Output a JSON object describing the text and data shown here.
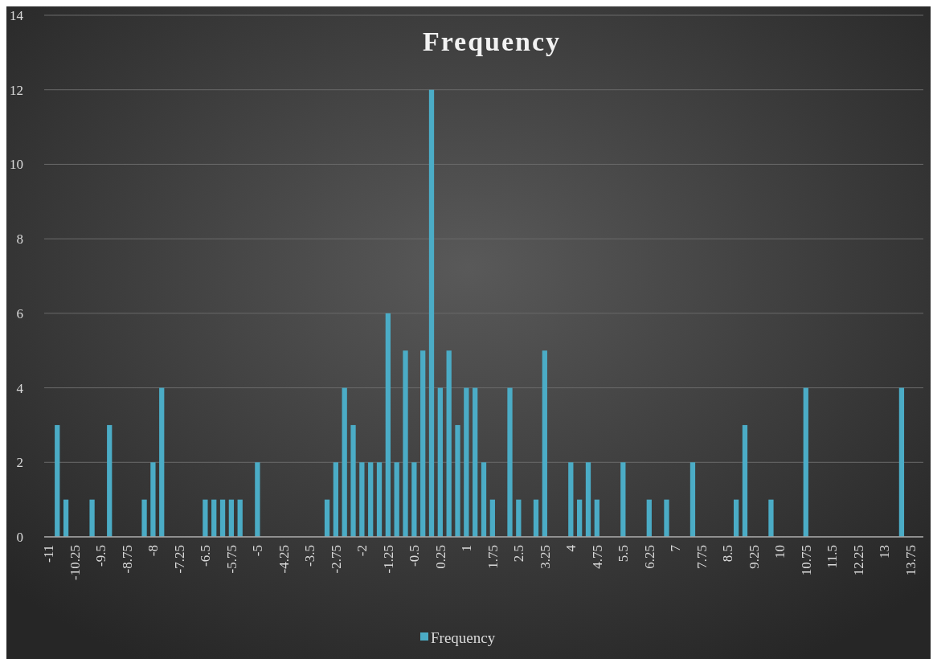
{
  "chart_data": {
    "type": "bar",
    "title": "Frequency",
    "categories": [
      "-11",
      null,
      null,
      "-10.25",
      null,
      null,
      "-9.5",
      null,
      null,
      "-8.75",
      null,
      null,
      "-8",
      null,
      null,
      "-7.25",
      null,
      null,
      "-6.5",
      null,
      null,
      "-5.75",
      null,
      null,
      "-5",
      null,
      null,
      "-4.25",
      null,
      null,
      "-3.5",
      null,
      null,
      "-2.75",
      null,
      null,
      "-2",
      null,
      null,
      "-1.25",
      null,
      null,
      "-0.5",
      null,
      null,
      "0.25",
      null,
      null,
      "1",
      null,
      null,
      "1.75",
      null,
      null,
      "2.5",
      null,
      null,
      "3.25",
      null,
      null,
      "4",
      null,
      null,
      "4.75",
      null,
      null,
      "5.5",
      null,
      null,
      "6.25",
      null,
      null,
      "7",
      null,
      null,
      "7.75",
      null,
      null,
      "8.5",
      null,
      null,
      "9.25",
      null,
      null,
      "10",
      null,
      null,
      "10.75",
      null,
      null,
      "11.5",
      null,
      null,
      "12.25",
      null,
      null,
      "13",
      null,
      null,
      "13.75",
      null
    ],
    "series": [
      {
        "name": "Frequency",
        "color": "#4bacc6",
        "values": [
          0,
          3,
          1,
          0,
          0,
          1,
          0,
          3,
          0,
          0,
          0,
          1,
          2,
          4,
          0,
          0,
          0,
          0,
          1,
          1,
          1,
          1,
          1,
          0,
          2,
          0,
          0,
          0,
          0,
          0,
          0,
          0,
          1,
          2,
          4,
          3,
          2,
          2,
          2,
          6,
          2,
          5,
          2,
          5,
          12,
          4,
          5,
          3,
          4,
          4,
          2,
          1,
          0,
          4,
          1,
          0,
          1,
          5,
          0,
          0,
          2,
          1,
          2,
          1,
          0,
          0,
          2,
          0,
          0,
          1,
          0,
          1,
          0,
          0,
          2,
          0,
          0,
          0,
          0,
          1,
          3,
          0,
          0,
          1,
          0,
          0,
          0,
          4,
          0,
          0,
          0,
          0,
          0,
          0,
          0,
          0,
          0,
          0,
          4,
          0,
          0
        ]
      }
    ],
    "ylim": [
      0,
      14
    ],
    "yticks": [
      0,
      2,
      4,
      6,
      8,
      10,
      12,
      14
    ],
    "grid": "y",
    "legend": "bottom"
  }
}
